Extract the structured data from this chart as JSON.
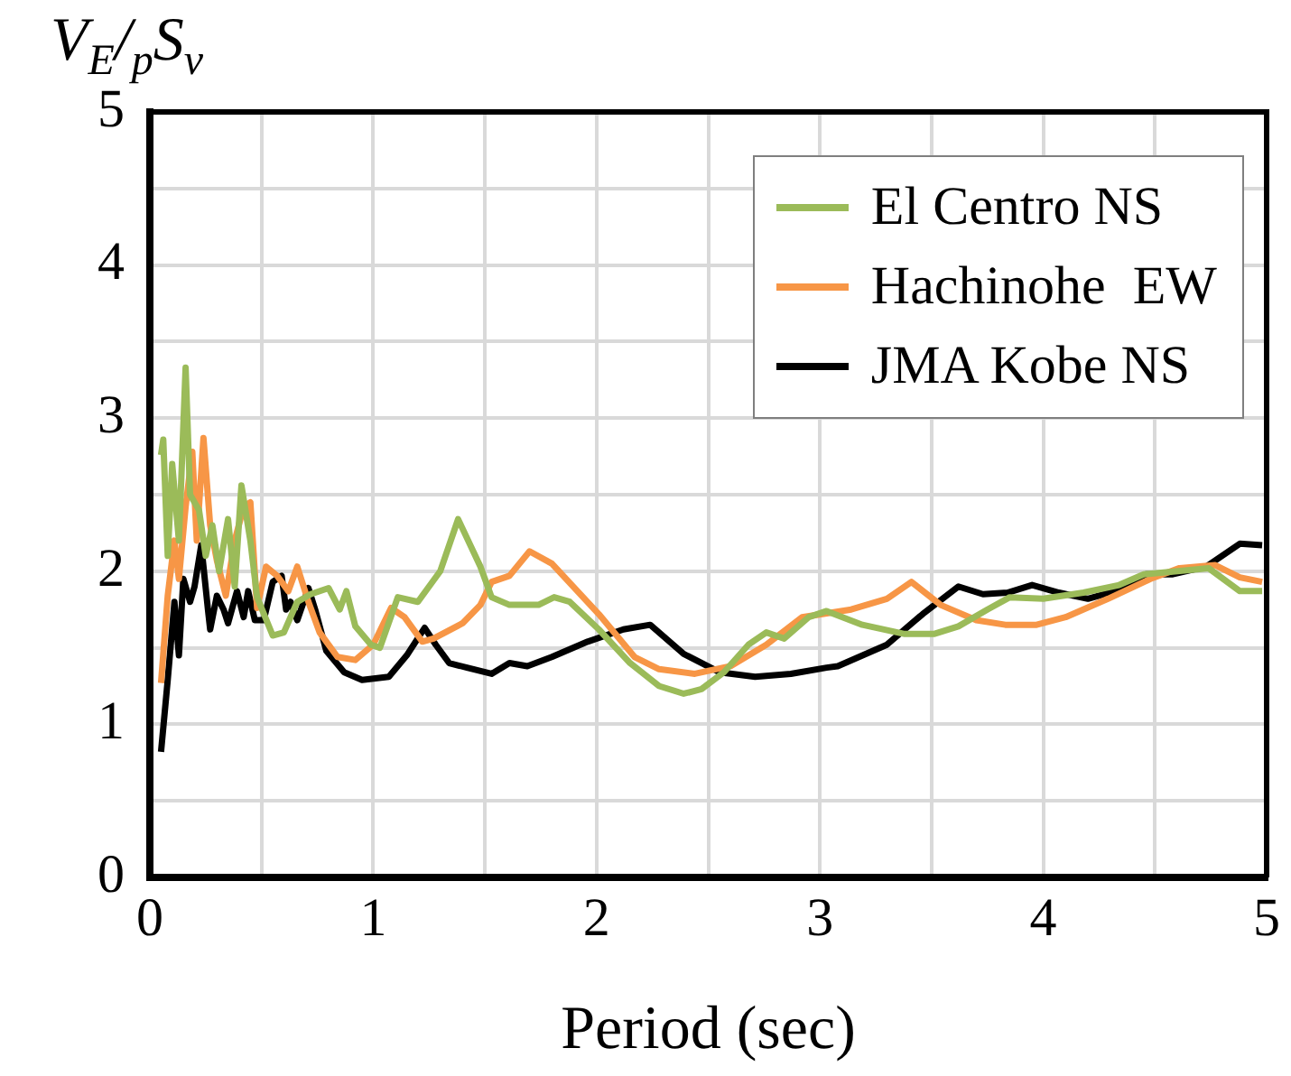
{
  "chart_data": {
    "type": "line",
    "xlabel": "Period (sec)",
    "ylabel": "V$_{E}$/$_{p}$S$_{v}$",
    "xlim": [
      0,
      5
    ],
    "ylim": [
      0,
      5
    ],
    "xticks": [
      0,
      {
        "value": 0.5,
        "label": null
      },
      1,
      {
        "value": 1.5,
        "label": null
      },
      2,
      {
        "value": 2.5,
        "label": null
      },
      3,
      {
        "value": 3.5,
        "label": null
      },
      4,
      {
        "value": 4.5,
        "label": null
      },
      5
    ],
    "yticks": [
      0,
      {
        "value": 0.5,
        "label": null
      },
      1,
      {
        "value": 1.5,
        "label": null
      },
      2,
      {
        "value": 2.5,
        "label": null
      },
      3,
      {
        "value": 3.5,
        "label": null
      },
      4,
      {
        "value": 4.5,
        "label": null
      },
      5
    ],
    "grid": true,
    "legend": "top right",
    "marker": "none",
    "line_style": "solid",
    "series": [
      {
        "name": "El Centro NS",
        "color": "#9bbb59",
        "x": [
          0.05,
          0.06,
          0.08,
          0.1,
          0.13,
          0.16,
          0.18,
          0.22,
          0.25,
          0.28,
          0.31,
          0.35,
          0.38,
          0.41,
          0.45,
          0.48,
          0.55,
          0.6,
          0.66,
          0.72,
          0.8,
          0.85,
          0.88,
          0.92,
          0.99,
          1.03,
          1.11,
          1.2,
          1.3,
          1.38,
          1.48,
          1.53,
          1.61,
          1.74,
          1.81,
          1.88,
          2.01,
          2.15,
          2.28,
          2.39,
          2.47,
          2.57,
          2.68,
          2.76,
          2.84,
          2.95,
          3.03,
          3.19,
          3.38,
          3.51,
          3.62,
          3.75,
          3.85,
          4.0,
          4.18,
          4.34,
          4.45,
          4.74,
          4.88,
          4.98
        ],
        "values": [
          2.76,
          2.86,
          2.1,
          2.7,
          2.2,
          3.33,
          2.5,
          2.4,
          2.1,
          2.3,
          2.0,
          2.34,
          1.9,
          2.56,
          2.2,
          1.83,
          1.58,
          1.6,
          1.8,
          1.85,
          1.89,
          1.75,
          1.87,
          1.64,
          1.52,
          1.5,
          1.83,
          1.8,
          2.0,
          2.34,
          2.03,
          1.83,
          1.78,
          1.78,
          1.83,
          1.8,
          1.62,
          1.4,
          1.25,
          1.2,
          1.23,
          1.34,
          1.52,
          1.6,
          1.56,
          1.7,
          1.74,
          1.65,
          1.59,
          1.59,
          1.64,
          1.75,
          1.83,
          1.82,
          1.86,
          1.91,
          1.98,
          2.02,
          1.87,
          1.87
        ]
      },
      {
        "name": "Hachinohe  EW",
        "color": "#f79646",
        "x": [
          0.05,
          0.08,
          0.11,
          0.13,
          0.16,
          0.19,
          0.21,
          0.24,
          0.27,
          0.3,
          0.34,
          0.38,
          0.42,
          0.45,
          0.48,
          0.52,
          0.57,
          0.62,
          0.66,
          0.71,
          0.76,
          0.84,
          0.92,
          1.0,
          1.08,
          1.14,
          1.22,
          1.27,
          1.4,
          1.48,
          1.53,
          1.61,
          1.7,
          1.8,
          2.01,
          2.17,
          2.28,
          2.44,
          2.6,
          2.76,
          2.92,
          3.14,
          3.3,
          3.41,
          3.54,
          3.7,
          3.83,
          3.97,
          4.1,
          4.29,
          4.48,
          4.61,
          4.77,
          4.88,
          4.98
        ],
        "values": [
          1.27,
          1.84,
          2.2,
          1.95,
          2.42,
          2.78,
          2.2,
          2.87,
          2.3,
          2.07,
          1.84,
          2.2,
          2.42,
          2.45,
          1.76,
          2.03,
          1.97,
          1.87,
          2.03,
          1.8,
          1.6,
          1.44,
          1.42,
          1.52,
          1.76,
          1.7,
          1.54,
          1.56,
          1.66,
          1.78,
          1.93,
          1.97,
          2.13,
          2.05,
          1.72,
          1.44,
          1.36,
          1.33,
          1.38,
          1.52,
          1.7,
          1.75,
          1.82,
          1.93,
          1.78,
          1.68,
          1.65,
          1.65,
          1.7,
          1.82,
          1.95,
          2.02,
          2.04,
          1.96,
          1.93
        ]
      },
      {
        "name": "JMA Kobe NS",
        "color": "#000000",
        "x": [
          0.05,
          0.08,
          0.11,
          0.13,
          0.15,
          0.18,
          0.2,
          0.23,
          0.26,
          0.27,
          0.3,
          0.33,
          0.35,
          0.39,
          0.42,
          0.44,
          0.47,
          0.51,
          0.55,
          0.59,
          0.61,
          0.63,
          0.66,
          0.71,
          0.74,
          0.79,
          0.87,
          0.95,
          1.07,
          1.15,
          1.23,
          1.28,
          1.34,
          1.42,
          1.53,
          1.61,
          1.69,
          1.8,
          1.96,
          2.12,
          2.24,
          2.39,
          2.55,
          2.71,
          2.87,
          3.03,
          3.08,
          3.3,
          3.46,
          3.62,
          3.73,
          3.84,
          3.95,
          4.07,
          4.2,
          4.32,
          4.46,
          4.58,
          4.73,
          4.88,
          4.98
        ],
        "values": [
          0.82,
          1.29,
          1.8,
          1.45,
          1.95,
          1.8,
          1.9,
          2.17,
          1.75,
          1.62,
          1.84,
          1.75,
          1.66,
          1.87,
          1.7,
          1.87,
          1.68,
          1.68,
          1.93,
          1.97,
          1.75,
          1.8,
          1.68,
          1.89,
          1.75,
          1.48,
          1.34,
          1.29,
          1.31,
          1.45,
          1.63,
          1.52,
          1.4,
          1.37,
          1.33,
          1.4,
          1.38,
          1.44,
          1.54,
          1.62,
          1.65,
          1.46,
          1.34,
          1.31,
          1.33,
          1.37,
          1.38,
          1.52,
          1.72,
          1.9,
          1.85,
          1.86,
          1.91,
          1.86,
          1.82,
          1.87,
          1.98,
          1.98,
          2.03,
          2.18,
          2.17
        ]
      }
    ]
  }
}
